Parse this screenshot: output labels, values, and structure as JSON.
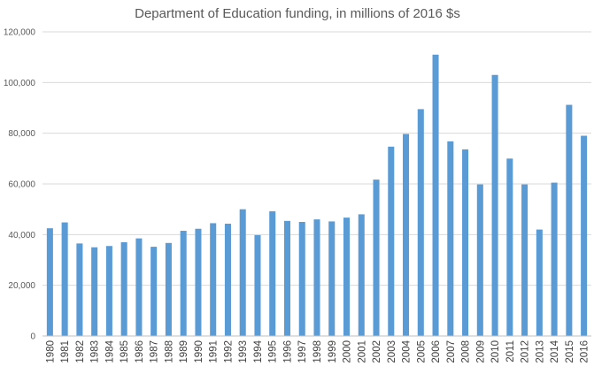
{
  "chart_data": {
    "type": "bar",
    "title": "Department of Education funding, in millions of 2016 $s",
    "xlabel": "",
    "ylabel": "",
    "ylim": [
      0,
      120000
    ],
    "yticks": [
      0,
      20000,
      40000,
      60000,
      80000,
      100000,
      120000
    ],
    "ytick_labels": [
      "0",
      "20,000",
      "40,000",
      "60,000",
      "80,000",
      "100,000",
      "120,000"
    ],
    "grid": true,
    "legend": "none",
    "bar_color": "#5b9bd5",
    "categories": [
      "1980",
      "1981",
      "1982",
      "1983",
      "1984",
      "1985",
      "1986",
      "1987",
      "1988",
      "1989",
      "1990",
      "1991",
      "1992",
      "1993",
      "1994",
      "1995",
      "1996",
      "1997",
      "1998",
      "1999",
      "2000",
      "2001",
      "2002",
      "2003",
      "2004",
      "2005",
      "2006",
      "2007",
      "2008",
      "2009",
      "2010",
      "2011",
      "2012",
      "2013",
      "2014",
      "2015",
      "2016"
    ],
    "values": [
      42500,
      44800,
      36500,
      35000,
      35500,
      37000,
      38500,
      35200,
      36700,
      41500,
      42300,
      44500,
      44300,
      50000,
      39800,
      49200,
      45400,
      45000,
      46000,
      45200,
      46700,
      48000,
      61700,
      74700,
      79700,
      89500,
      111000,
      76800,
      73600,
      59800,
      103000,
      70000,
      59800,
      42000,
      60500,
      91200,
      79000
    ]
  }
}
